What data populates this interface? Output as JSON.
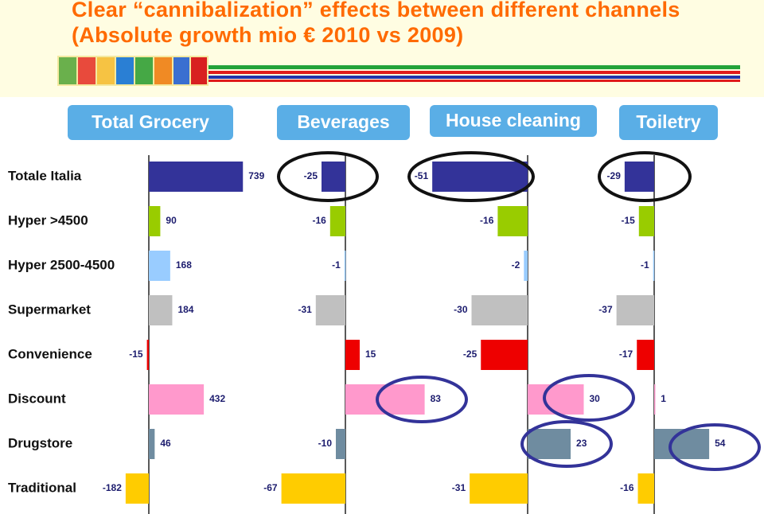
{
  "title": "Clear “cannibalization” effects between different channels (Absolute growth mio € 2010 vs 2009)",
  "chart_data": {
    "type": "bar",
    "orientation": "horizontal",
    "categories": [
      "Totale Italia",
      "Hyper >4500",
      "Hyper 2500-4500",
      "Supermarket",
      "Convenience",
      "Discount",
      "Drugstore",
      "Traditional"
    ],
    "colors": [
      "#333399",
      "#99cc00",
      "#99ccff",
      "#c0c0c0",
      "#ee0000",
      "#ff99cc",
      "#6f8ca0",
      "#ffcc00"
    ],
    "series": [
      {
        "name": "Total Grocery",
        "values": [
          739,
          90,
          168,
          184,
          -15,
          432,
          46,
          -182
        ]
      },
      {
        "name": "Beverages",
        "values": [
          -25,
          -16,
          -1,
          -31,
          15,
          83,
          -10,
          -67
        ]
      },
      {
        "name": "House cleaning",
        "values": [
          -51,
          -16,
          -2,
          -30,
          -25,
          30,
          23,
          -31
        ]
      },
      {
        "name": "Toiletry",
        "values": [
          -29,
          -15,
          -1,
          -37,
          -17,
          1,
          54,
          -16
        ]
      }
    ]
  }
}
